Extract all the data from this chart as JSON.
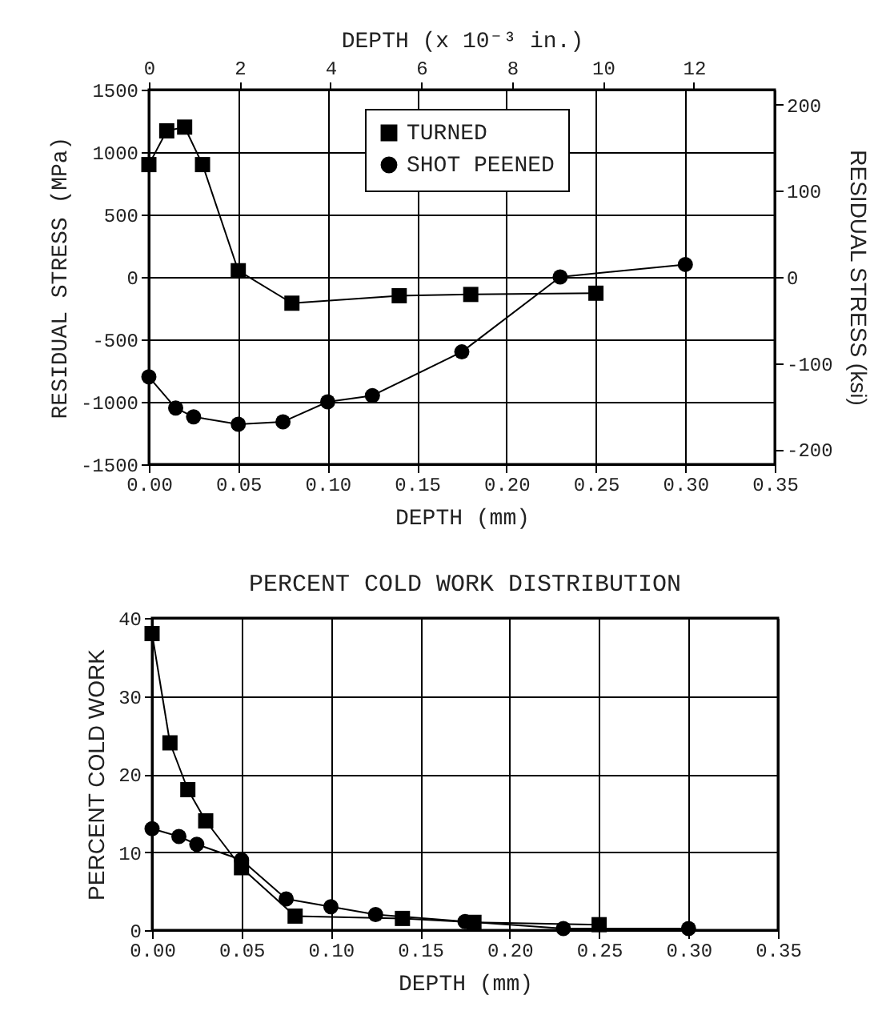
{
  "chart_data": [
    {
      "type": "line",
      "xlabel": "DEPTH (mm)",
      "x2label": "DEPTH (x 10⁻³ in.)",
      "ylabel": "RESIDUAL  STRESS  (MPa)",
      "y2label": "RESIDUAL STRESS (ksi)",
      "xlim": [
        0,
        0.35
      ],
      "xticks": [
        {
          "value": 0,
          "label": "0.00"
        },
        {
          "value": 0.05,
          "label": "0.05"
        },
        {
          "value": 0.1,
          "label": "0.10"
        },
        {
          "value": 0.15,
          "label": "0.15"
        },
        {
          "value": 0.2,
          "label": "0.20"
        },
        {
          "value": 0.25,
          "label": "0.25"
        },
        {
          "value": 0.3,
          "label": "0.30"
        },
        {
          "value": 0.35,
          "label": "0.35"
        }
      ],
      "x2lim": [
        0,
        13.78
      ],
      "x2ticks": [
        0,
        2,
        4,
        6,
        8,
        10,
        12
      ],
      "ylim": [
        -1500,
        1500
      ],
      "yticks": [
        -1500,
        -1000,
        -500,
        0,
        500,
        1000,
        1500
      ],
      "y2lim": [
        -217.6,
        217.6
      ],
      "y2ticks": [
        -200,
        -100,
        0,
        100,
        200
      ],
      "grid": true,
      "legend": "top",
      "line_style": "solid",
      "series": [
        {
          "name": "TURNED",
          "color": "#000000",
          "marker": "square",
          "x": [
            0,
            0.01,
            0.02,
            0.03,
            0.05,
            0.08,
            0.14,
            0.18,
            0.25
          ],
          "values": [
            900,
            1170,
            1200,
            900,
            50,
            -210,
            -150,
            -140,
            -130
          ]
        },
        {
          "name": "SHOT PEENED",
          "color": "#000000",
          "marker": "circle",
          "x": [
            0,
            0.015,
            0.025,
            0.05,
            0.075,
            0.1,
            0.125,
            0.175,
            0.23,
            0.3
          ],
          "values": [
            -800,
            -1050,
            -1120,
            -1180,
            -1160,
            -1000,
            -950,
            -600,
            0,
            100
          ]
        }
      ]
    },
    {
      "type": "line",
      "title": "PERCENT COLD WORK DISTRIBUTION",
      "xlabel": "DEPTH (mm)",
      "ylabel": "PERCENT COLD WORK",
      "xlim": [
        0,
        0.35
      ],
      "xticks": [
        {
          "value": 0,
          "label": "0.00"
        },
        {
          "value": 0.05,
          "label": "0.05"
        },
        {
          "value": 0.1,
          "label": "0.10"
        },
        {
          "value": 0.15,
          "label": "0.15"
        },
        {
          "value": 0.2,
          "label": "0.20"
        },
        {
          "value": 0.25,
          "label": "0.25"
        },
        {
          "value": 0.3,
          "label": "0.30"
        },
        {
          "value": 0.35,
          "label": "0.35"
        }
      ],
      "ylim": [
        0,
        40
      ],
      "yticks": [
        0,
        10,
        20,
        30,
        40
      ],
      "grid": true,
      "line_style": "solid",
      "series": [
        {
          "color": "#000000",
          "marker": "square",
          "x": [
            0,
            0.01,
            0.02,
            0.03,
            0.05,
            0.08,
            0.14,
            0.18,
            0.25
          ],
          "values": [
            38,
            24,
            18,
            14,
            8,
            1.8,
            1.5,
            1,
            0.7
          ]
        },
        {
          "color": "#000000",
          "marker": "circle",
          "x": [
            0,
            0.015,
            0.025,
            0.05,
            0.075,
            0.1,
            0.125,
            0.175,
            0.23,
            0.3
          ],
          "values": [
            13,
            12,
            11,
            9,
            4,
            3,
            2,
            1.1,
            0.2,
            0.2
          ]
        }
      ]
    }
  ]
}
